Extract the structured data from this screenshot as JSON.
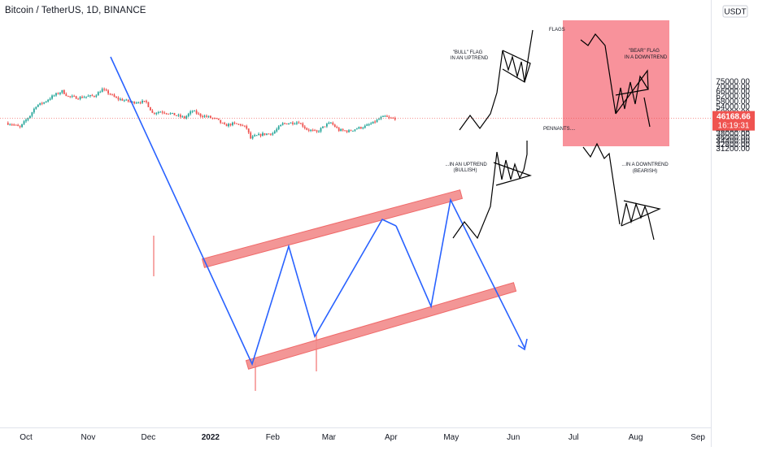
{
  "header": {
    "title": "Bitcoin / TetherUS, 1D, BINANCE",
    "currency": "USDT"
  },
  "price_tag": {
    "price": "46168.66",
    "countdown": "16:19:31",
    "color": "#ef5350"
  },
  "colors": {
    "up": "#26a69a",
    "down": "#ef5350",
    "trendline": "#2962ff",
    "channel": "#f28b8b",
    "channel_border": "#f06a6a",
    "flag_box": "#f77f89"
  },
  "chart_data": {
    "type": "candlestick",
    "x_ticks": [
      {
        "label": "Oct",
        "bold": false
      },
      {
        "label": "Nov",
        "bold": false
      },
      {
        "label": "Dec",
        "bold": false
      },
      {
        "label": "2022",
        "bold": true
      },
      {
        "label": "Feb",
        "bold": false
      },
      {
        "label": "Mar",
        "bold": false
      },
      {
        "label": "Apr",
        "bold": false
      },
      {
        "label": "May",
        "bold": false
      },
      {
        "label": "Jun",
        "bold": false
      },
      {
        "label": "Jul",
        "bold": false
      },
      {
        "label": "Aug",
        "bold": false
      },
      {
        "label": "Sep",
        "bold": false
      }
    ],
    "y_ticks": [
      "75000.00",
      "70000.00",
      "66000.00",
      "62000.00",
      "58000.00",
      "54000.00",
      "50000.00",
      "47000.00",
      "44000.00",
      "42000.00",
      "40000.00",
      "38000.00",
      "36000.00",
      "34400.00",
      "32800.00",
      "31200.00"
    ],
    "y_scale": "log",
    "price_path": [
      [
        "2021-09-22",
        43500
      ],
      [
        "2021-09-25",
        42800
      ],
      [
        "2021-09-29",
        41000
      ],
      [
        "2021-10-01",
        43800
      ],
      [
        "2021-10-04",
        48000
      ],
      [
        "2021-10-07",
        54500
      ],
      [
        "2021-10-11",
        57000
      ],
      [
        "2021-10-15",
        61500
      ],
      [
        "2021-10-20",
        66000
      ],
      [
        "2021-10-23",
        61500
      ],
      [
        "2021-10-28",
        60500
      ],
      [
        "2021-11-01",
        61500
      ],
      [
        "2021-11-05",
        62000
      ],
      [
        "2021-11-09",
        67500
      ],
      [
        "2021-11-12",
        64500
      ],
      [
        "2021-11-16",
        60000
      ],
      [
        "2021-11-20",
        58500
      ],
      [
        "2021-11-24",
        57000
      ],
      [
        "2021-11-28",
        57500
      ],
      [
        "2021-12-01",
        57000
      ],
      [
        "2021-12-04",
        49500
      ],
      [
        "2021-12-08",
        50500
      ],
      [
        "2021-12-12",
        49500
      ],
      [
        "2021-12-16",
        48000
      ],
      [
        "2021-12-20",
        46500
      ],
      [
        "2021-12-24",
        51000
      ],
      [
        "2021-12-28",
        48000
      ],
      [
        "2022-01-01",
        47000
      ],
      [
        "2022-01-05",
        45500
      ],
      [
        "2022-01-09",
        42000
      ],
      [
        "2022-01-13",
        43000
      ],
      [
        "2022-01-17",
        42500
      ],
      [
        "2022-01-20",
        40500
      ],
      [
        "2022-01-22",
        35500
      ],
      [
        "2022-01-24",
        36500
      ],
      [
        "2022-01-28",
        37500
      ],
      [
        "2022-02-02",
        38000
      ],
      [
        "2022-02-07",
        43000
      ],
      [
        "2022-02-11",
        43500
      ],
      [
        "2022-02-15",
        44000
      ],
      [
        "2022-02-19",
        40000
      ],
      [
        "2022-02-24",
        38500
      ],
      [
        "2022-02-28",
        42000
      ],
      [
        "2022-03-03",
        43500
      ],
      [
        "2022-03-07",
        39500
      ],
      [
        "2022-03-12",
        39000
      ],
      [
        "2022-03-16",
        40500
      ],
      [
        "2022-03-20",
        41500
      ],
      [
        "2022-03-24",
        43500
      ],
      [
        "2022-03-28",
        46500
      ],
      [
        "2022-03-30",
        47300
      ],
      [
        "2022-04-01",
        46200
      ],
      [
        "2022-04-03",
        46168
      ]
    ],
    "drawings": {
      "flag_labels": {
        "bull_flag": "\"BULL\" FLAG",
        "bull_flag_sub": "IN AN UPTREND",
        "flags": "FLAGS",
        "bear_flag": "\"BEAR\" FLAG",
        "bear_flag_sub": "IN A DOWNTREND",
        "pennants": "PENNANTS....",
        "uptrend": "...IN AN UPTREND",
        "uptrend_sub": "(BULLISH)",
        "downtrend": "...IN A DOWNTREND",
        "downtrend_sub": "(BEARISH)"
      }
    }
  }
}
